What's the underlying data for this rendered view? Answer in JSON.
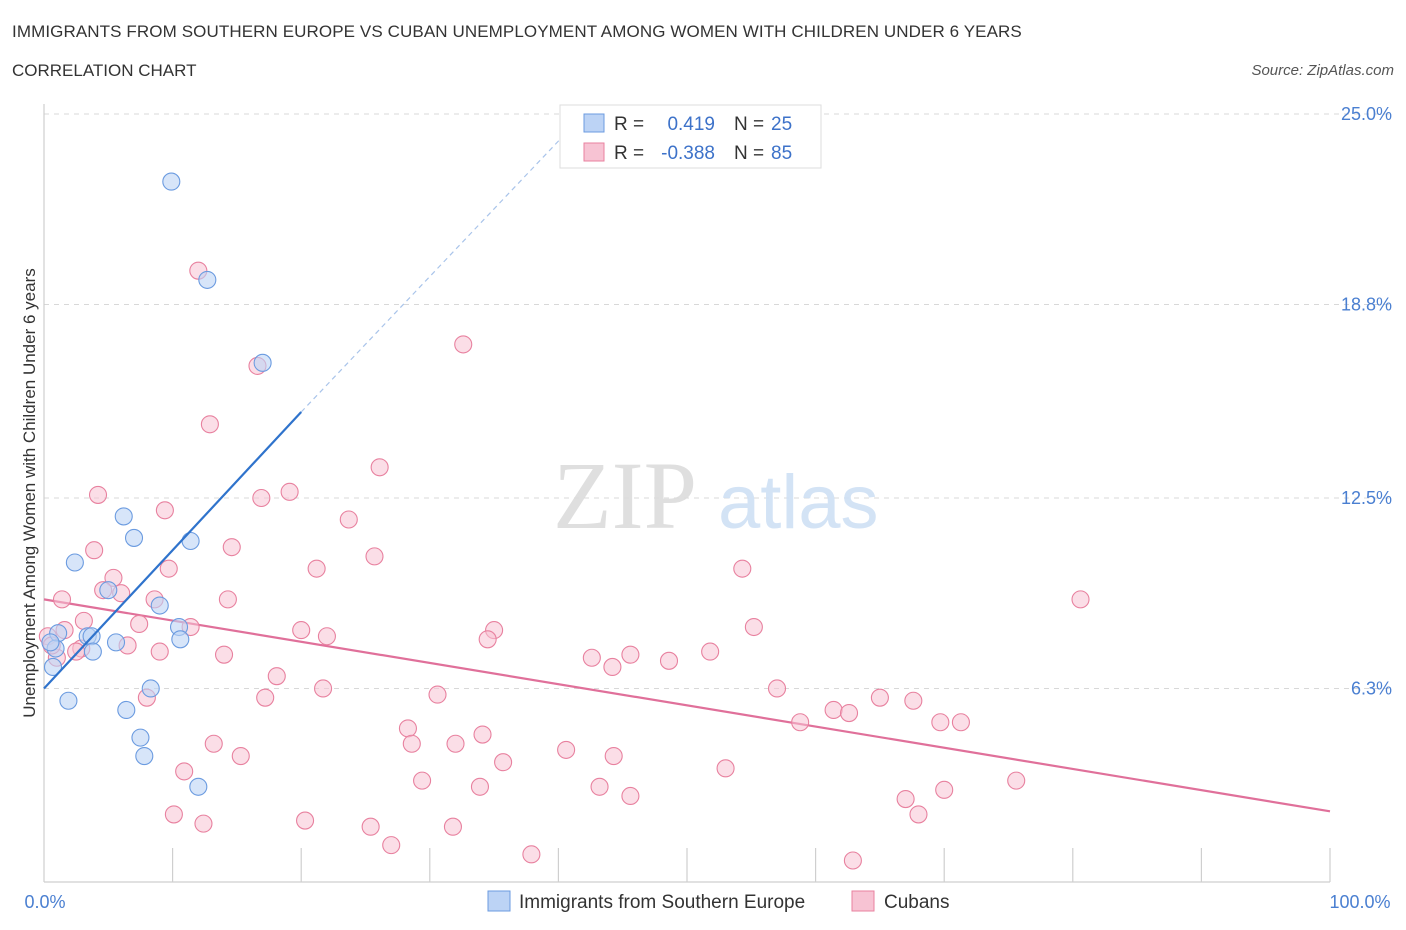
{
  "header": {
    "title": "IMMIGRANTS FROM SOUTHERN EUROPE VS CUBAN UNEMPLOYMENT AMONG WOMEN WITH CHILDREN UNDER 6 YEARS",
    "subtitle": "CORRELATION CHART",
    "source": "Source: ZipAtlas.com"
  },
  "watermark": {
    "zip": "ZIP",
    "atlas": "atlas"
  },
  "colors": {
    "blue": "#6b9be0",
    "blue_fill": "#bcd3f5",
    "blue_line": "#2f73cc",
    "pink": "#e8819f",
    "pink_fill": "#f7c3d3",
    "pink_line": "#e0709a",
    "grid": "#d8d8d8",
    "tick": "#4a7fd1"
  },
  "legend": {
    "r_label": "R =",
    "n_label": "N =",
    "items": [
      {
        "r": "0.419",
        "n": "25"
      },
      {
        "r": "-0.388",
        "n": "85"
      }
    ]
  },
  "chart_data": {
    "type": "scatter",
    "ylabel": "Unemployment Among Women with Children Under 6 years",
    "xlim": [
      0,
      100
    ],
    "ylim": [
      0,
      25
    ],
    "x_tick_labels": [
      "0.0%",
      "100.0%"
    ],
    "y_ticks": [
      6.3,
      12.5,
      18.8,
      25.0
    ],
    "y_tick_labels": [
      "6.3%",
      "12.5%",
      "18.8%",
      "25.0%"
    ],
    "grid": true,
    "legend_position": "top-center",
    "series": [
      {
        "name": "Immigrants from Southern Europe",
        "r": 0.419,
        "n": 25,
        "trend": {
          "x0": 0,
          "y0": 6.3,
          "x1": 20,
          "y1": 15.3,
          "x_dash_end": 42,
          "y_dash_end": 25
        },
        "points": [
          [
            9.9,
            22.8
          ],
          [
            12.7,
            19.6
          ],
          [
            17.0,
            16.9
          ],
          [
            6.2,
            11.9
          ],
          [
            7.0,
            11.2
          ],
          [
            11.4,
            11.1
          ],
          [
            2.4,
            10.4
          ],
          [
            5.0,
            9.5
          ],
          [
            9.0,
            9.0
          ],
          [
            1.1,
            8.1
          ],
          [
            3.4,
            8.0
          ],
          [
            3.7,
            8.0
          ],
          [
            5.6,
            7.8
          ],
          [
            10.5,
            8.3
          ],
          [
            10.6,
            7.9
          ],
          [
            0.9,
            7.6
          ],
          [
            3.8,
            7.5
          ],
          [
            0.7,
            7.0
          ],
          [
            8.3,
            6.3
          ],
          [
            1.9,
            5.9
          ],
          [
            6.4,
            5.6
          ],
          [
            7.5,
            4.7
          ],
          [
            7.8,
            4.1
          ],
          [
            12.0,
            3.1
          ],
          [
            0.5,
            7.8
          ]
        ]
      },
      {
        "name": "Cubans",
        "r": -0.388,
        "n": 85,
        "trend": {
          "x0": 0,
          "y0": 9.2,
          "x1": 100,
          "y1": 2.3
        },
        "points": [
          [
            12.0,
            19.9
          ],
          [
            16.6,
            16.8
          ],
          [
            32.6,
            17.5
          ],
          [
            12.9,
            14.9
          ],
          [
            26.1,
            13.5
          ],
          [
            4.2,
            12.6
          ],
          [
            16.9,
            12.5
          ],
          [
            19.1,
            12.7
          ],
          [
            9.4,
            12.1
          ],
          [
            23.7,
            11.8
          ],
          [
            3.9,
            10.8
          ],
          [
            14.6,
            10.9
          ],
          [
            25.7,
            10.6
          ],
          [
            21.2,
            10.2
          ],
          [
            9.7,
            10.2
          ],
          [
            54.3,
            10.2
          ],
          [
            5.4,
            9.9
          ],
          [
            4.6,
            9.5
          ],
          [
            6.0,
            9.4
          ],
          [
            8.6,
            9.2
          ],
          [
            1.4,
            9.2
          ],
          [
            14.3,
            9.2
          ],
          [
            80.6,
            9.2
          ],
          [
            20.0,
            8.2
          ],
          [
            22.0,
            8.0
          ],
          [
            11.4,
            8.3
          ],
          [
            35.0,
            8.2
          ],
          [
            34.5,
            7.9
          ],
          [
            55.2,
            8.3
          ],
          [
            1.6,
            8.2
          ],
          [
            0.3,
            8.0
          ],
          [
            7.4,
            8.4
          ],
          [
            2.9,
            7.6
          ],
          [
            6.5,
            7.7
          ],
          [
            9.0,
            7.5
          ],
          [
            14.0,
            7.4
          ],
          [
            42.6,
            7.3
          ],
          [
            44.2,
            7.0
          ],
          [
            45.6,
            7.4
          ],
          [
            48.6,
            7.2
          ],
          [
            51.8,
            7.5
          ],
          [
            18.1,
            6.7
          ],
          [
            21.7,
            6.3
          ],
          [
            17.2,
            6.0
          ],
          [
            30.6,
            6.1
          ],
          [
            57.0,
            6.3
          ],
          [
            65.0,
            6.0
          ],
          [
            67.6,
            5.9
          ],
          [
            61.4,
            5.6
          ],
          [
            62.6,
            5.5
          ],
          [
            58.8,
            5.2
          ],
          [
            69.7,
            5.2
          ],
          [
            71.3,
            5.2
          ],
          [
            28.3,
            5.0
          ],
          [
            8.0,
            6.0
          ],
          [
            28.6,
            4.5
          ],
          [
            32.0,
            4.5
          ],
          [
            34.1,
            4.8
          ],
          [
            13.2,
            4.5
          ],
          [
            15.3,
            4.1
          ],
          [
            40.6,
            4.3
          ],
          [
            44.3,
            4.1
          ],
          [
            35.7,
            3.9
          ],
          [
            10.9,
            3.6
          ],
          [
            53.0,
            3.7
          ],
          [
            29.4,
            3.3
          ],
          [
            33.9,
            3.1
          ],
          [
            43.2,
            3.1
          ],
          [
            45.6,
            2.8
          ],
          [
            75.6,
            3.3
          ],
          [
            67.0,
            2.7
          ],
          [
            68.0,
            2.2
          ],
          [
            10.1,
            2.2
          ],
          [
            12.4,
            1.9
          ],
          [
            20.3,
            2.0
          ],
          [
            25.4,
            1.8
          ],
          [
            31.8,
            1.8
          ],
          [
            27.0,
            1.2
          ],
          [
            37.9,
            0.9
          ],
          [
            62.9,
            0.7
          ],
          [
            70.0,
            3.0
          ],
          [
            2.5,
            7.5
          ],
          [
            1.0,
            7.3
          ],
          [
            0.6,
            7.7
          ],
          [
            3.1,
            8.5
          ]
        ]
      }
    ]
  }
}
